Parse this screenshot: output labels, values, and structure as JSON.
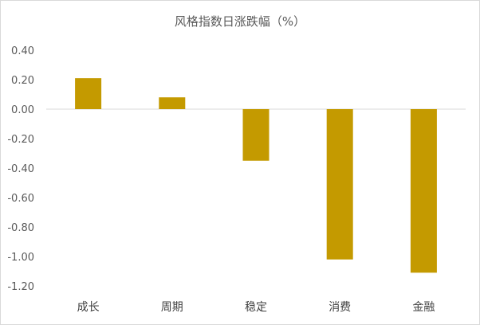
{
  "chart_data": {
    "type": "bar",
    "title": "风格指数日涨跌幅（%）",
    "xlabel": "",
    "ylabel": "",
    "categories": [
      "成长",
      "周期",
      "稳定",
      "消费",
      "金融"
    ],
    "values": [
      0.21,
      0.08,
      -0.35,
      -1.02,
      -1.11
    ],
    "ylim": [
      -1.2,
      0.4
    ],
    "yticks": [
      0.4,
      0.2,
      0.0,
      -0.2,
      -0.4,
      -0.6,
      -0.8,
      -1.0,
      -1.2
    ],
    "ytick_labels": [
      "0.40",
      "0.20",
      "0.00",
      "-0.20",
      "-0.40",
      "-0.60",
      "-0.80",
      "-1.00",
      "-1.20"
    ],
    "bar_color": "#C49A00",
    "grid": false,
    "legend": "none"
  }
}
